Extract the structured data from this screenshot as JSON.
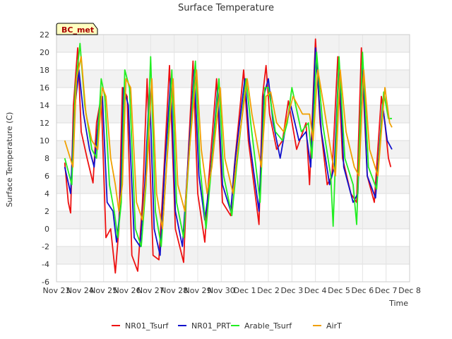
{
  "chart_data": {
    "type": "line",
    "title": "Surface Temperature",
    "xlabel": "Time",
    "ylabel": "Surface Temperature (C)",
    "badge": "BC_met",
    "xlim": [
      0,
      15
    ],
    "ylim": [
      -6,
      22
    ],
    "yticks": [
      -6,
      -4,
      -2,
      0,
      2,
      4,
      6,
      8,
      10,
      12,
      14,
      16,
      18,
      20,
      22
    ],
    "xticks": [
      {
        "v": 0,
        "label": "Nov 23"
      },
      {
        "v": 1,
        "label": "Nov 24"
      },
      {
        "v": 2,
        "label": "Nov 25"
      },
      {
        "v": 3,
        "label": "Nov 26"
      },
      {
        "v": 4,
        "label": "Nov 27"
      },
      {
        "v": 5,
        "label": "Nov 28"
      },
      {
        "v": 6,
        "label": "Nov 29"
      },
      {
        "v": 7,
        "label": "Nov 30"
      },
      {
        "v": 8,
        "label": "Dec 1"
      },
      {
        "v": 9,
        "label": "Dec 2"
      },
      {
        "v": 10,
        "label": "Dec 3"
      },
      {
        "v": 11,
        "label": "Dec 4"
      },
      {
        "v": 12,
        "label": "Dec 5"
      },
      {
        "v": 13,
        "label": "Dec 6"
      },
      {
        "v": 14,
        "label": "Dec 7"
      },
      {
        "v": 15,
        "label": "Dec 8"
      }
    ],
    "grid": true,
    "legend": "bottom",
    "series": [
      {
        "name": "NR01_Tsurf",
        "color": "#ee1111",
        "points": [
          [
            0.35,
            7.5
          ],
          [
            0.5,
            3
          ],
          [
            0.6,
            1.8
          ],
          [
            0.72,
            14
          ],
          [
            0.9,
            20.5
          ],
          [
            1.05,
            11
          ],
          [
            1.3,
            8
          ],
          [
            1.55,
            5.2
          ],
          [
            1.7,
            12
          ],
          [
            1.9,
            15
          ],
          [
            2.1,
            -1
          ],
          [
            2.3,
            0
          ],
          [
            2.5,
            -5
          ],
          [
            2.65,
            0
          ],
          [
            2.8,
            16
          ],
          [
            3.0,
            15
          ],
          [
            3.2,
            -3
          ],
          [
            3.45,
            -4.8
          ],
          [
            3.65,
            3
          ],
          [
            3.85,
            17
          ],
          [
            4.1,
            -3
          ],
          [
            4.35,
            -3.5
          ],
          [
            4.55,
            6
          ],
          [
            4.8,
            18.5
          ],
          [
            5.05,
            0
          ],
          [
            5.4,
            -3.8
          ],
          [
            5.55,
            6
          ],
          [
            5.8,
            19
          ],
          [
            6.0,
            4
          ],
          [
            6.3,
            -1.5
          ],
          [
            6.45,
            5
          ],
          [
            6.8,
            17
          ],
          [
            7.05,
            3
          ],
          [
            7.4,
            1.5
          ],
          [
            7.55,
            7
          ],
          [
            7.95,
            18
          ],
          [
            8.15,
            10
          ],
          [
            8.6,
            0.5
          ],
          [
            8.75,
            15
          ],
          [
            8.9,
            18.5
          ],
          [
            9.05,
            13
          ],
          [
            9.35,
            9
          ],
          [
            9.6,
            10
          ],
          [
            9.85,
            14.5
          ],
          [
            10.2,
            9
          ],
          [
            10.6,
            12
          ],
          [
            10.75,
            5
          ],
          [
            11.0,
            21.5
          ],
          [
            11.2,
            12
          ],
          [
            11.5,
            5
          ],
          [
            11.7,
            6
          ],
          [
            11.95,
            19.5
          ],
          [
            12.15,
            8
          ],
          [
            12.5,
            4
          ],
          [
            12.75,
            3
          ],
          [
            12.95,
            20.5
          ],
          [
            13.2,
            6
          ],
          [
            13.5,
            3
          ],
          [
            13.8,
            15
          ],
          [
            13.95,
            12
          ],
          [
            14.1,
            8
          ],
          [
            14.2,
            7
          ]
        ]
      },
      {
        "name": "NR01_PRT",
        "color": "#1111cc",
        "points": [
          [
            0.35,
            7
          ],
          [
            0.6,
            4
          ],
          [
            0.75,
            13
          ],
          [
            0.95,
            18
          ],
          [
            1.15,
            13
          ],
          [
            1.4,
            9
          ],
          [
            1.6,
            7
          ],
          [
            1.8,
            13
          ],
          [
            1.95,
            15
          ],
          [
            2.15,
            3
          ],
          [
            2.4,
            2
          ],
          [
            2.55,
            -1.5
          ],
          [
            2.7,
            2
          ],
          [
            2.85,
            16
          ],
          [
            3.05,
            14
          ],
          [
            3.3,
            -1
          ],
          [
            3.55,
            -2
          ],
          [
            3.75,
            5
          ],
          [
            3.95,
            16
          ],
          [
            4.15,
            0
          ],
          [
            4.4,
            -3
          ],
          [
            4.6,
            7
          ],
          [
            4.85,
            17
          ],
          [
            5.05,
            2
          ],
          [
            5.35,
            -2
          ],
          [
            5.55,
            6
          ],
          [
            5.85,
            18
          ],
          [
            6.05,
            6
          ],
          [
            6.3,
            1
          ],
          [
            6.5,
            5
          ],
          [
            6.85,
            16
          ],
          [
            7.05,
            5
          ],
          [
            7.4,
            2
          ],
          [
            7.6,
            8
          ],
          [
            8.0,
            17
          ],
          [
            8.2,
            10
          ],
          [
            8.6,
            2
          ],
          [
            8.8,
            15
          ],
          [
            9.0,
            17
          ],
          [
            9.2,
            12
          ],
          [
            9.5,
            8
          ],
          [
            9.7,
            11
          ],
          [
            9.95,
            14
          ],
          [
            10.3,
            10
          ],
          [
            10.6,
            11
          ],
          [
            10.8,
            7
          ],
          [
            11.0,
            20.5
          ],
          [
            11.25,
            11
          ],
          [
            11.6,
            5
          ],
          [
            11.8,
            7
          ],
          [
            12.0,
            19
          ],
          [
            12.2,
            7
          ],
          [
            12.6,
            3
          ],
          [
            12.8,
            4
          ],
          [
            13.0,
            19.5
          ],
          [
            13.2,
            6
          ],
          [
            13.55,
            3.5
          ],
          [
            13.85,
            14
          ],
          [
            14.05,
            10
          ],
          [
            14.25,
            9
          ]
        ]
      },
      {
        "name": "Arable_Tsurf",
        "color": "#22ee22",
        "points": [
          [
            0.35,
            8
          ],
          [
            0.65,
            5
          ],
          [
            0.8,
            16
          ],
          [
            1.0,
            21
          ],
          [
            1.2,
            14
          ],
          [
            1.5,
            9
          ],
          [
            1.7,
            8
          ],
          [
            1.9,
            17
          ],
          [
            2.05,
            15
          ],
          [
            2.25,
            5
          ],
          [
            2.45,
            2
          ],
          [
            2.6,
            -1
          ],
          [
            2.75,
            3
          ],
          [
            2.9,
            18
          ],
          [
            3.1,
            16
          ],
          [
            3.35,
            0
          ],
          [
            3.6,
            -2
          ],
          [
            3.8,
            5
          ],
          [
            4.0,
            19.5
          ],
          [
            4.2,
            2
          ],
          [
            4.45,
            -2
          ],
          [
            4.65,
            6
          ],
          [
            4.9,
            18
          ],
          [
            5.1,
            3
          ],
          [
            5.4,
            -1
          ],
          [
            5.6,
            7
          ],
          [
            5.9,
            19
          ],
          [
            6.1,
            7
          ],
          [
            6.35,
            0
          ],
          [
            6.55,
            6
          ],
          [
            6.9,
            17
          ],
          [
            7.1,
            6
          ],
          [
            7.45,
            1.5
          ],
          [
            7.65,
            7
          ],
          [
            8.05,
            17
          ],
          [
            8.25,
            12
          ],
          [
            8.65,
            3
          ],
          [
            8.85,
            16
          ],
          [
            9.0,
            16
          ],
          [
            9.3,
            11
          ],
          [
            9.6,
            10
          ],
          [
            9.8,
            12
          ],
          [
            10.0,
            16
          ],
          [
            10.4,
            11
          ],
          [
            10.7,
            12
          ],
          [
            10.85,
            8
          ],
          [
            11.05,
            20
          ],
          [
            11.3,
            12
          ],
          [
            11.65,
            6
          ],
          [
            11.75,
            0.3
          ],
          [
            12.0,
            19.5
          ],
          [
            12.25,
            8
          ],
          [
            12.6,
            5
          ],
          [
            12.75,
            0.5
          ],
          [
            13.0,
            20
          ],
          [
            13.25,
            7
          ],
          [
            13.6,
            4.5
          ],
          [
            13.9,
            15.5
          ],
          [
            14.1,
            12.5
          ],
          [
            14.25,
            12.5
          ]
        ]
      },
      {
        "name": "AirT",
        "color": "#f0a000",
        "points": [
          [
            0.35,
            10
          ],
          [
            0.7,
            7
          ],
          [
            0.85,
            17
          ],
          [
            1.05,
            19.5
          ],
          [
            1.25,
            13
          ],
          [
            1.5,
            10
          ],
          [
            1.75,
            9
          ],
          [
            1.95,
            16
          ],
          [
            2.1,
            15
          ],
          [
            2.3,
            8
          ],
          [
            2.5,
            5
          ],
          [
            2.65,
            2
          ],
          [
            2.8,
            5
          ],
          [
            2.95,
            17
          ],
          [
            3.15,
            16
          ],
          [
            3.4,
            3
          ],
          [
            3.65,
            1
          ],
          [
            3.85,
            7
          ],
          [
            4.05,
            17
          ],
          [
            4.25,
            4
          ],
          [
            4.5,
            0
          ],
          [
            4.7,
            8
          ],
          [
            4.95,
            17
          ],
          [
            5.15,
            5
          ],
          [
            5.45,
            2
          ],
          [
            5.65,
            9
          ],
          [
            5.95,
            18
          ],
          [
            6.15,
            9
          ],
          [
            6.4,
            4
          ],
          [
            6.6,
            7
          ],
          [
            6.95,
            16
          ],
          [
            7.15,
            8
          ],
          [
            7.5,
            4
          ],
          [
            7.7,
            9
          ],
          [
            8.1,
            17
          ],
          [
            8.3,
            13
          ],
          [
            8.7,
            7
          ],
          [
            8.9,
            15
          ],
          [
            9.1,
            15.5
          ],
          [
            9.35,
            12
          ],
          [
            9.65,
            11
          ],
          [
            9.85,
            13
          ],
          [
            10.05,
            15
          ],
          [
            10.45,
            13
          ],
          [
            10.75,
            13
          ],
          [
            10.9,
            10
          ],
          [
            11.1,
            18
          ],
          [
            11.35,
            14
          ],
          [
            11.7,
            8
          ],
          [
            11.85,
            6
          ],
          [
            12.05,
            18
          ],
          [
            12.3,
            11
          ],
          [
            12.65,
            7
          ],
          [
            12.85,
            6
          ],
          [
            13.05,
            18
          ],
          [
            13.3,
            9
          ],
          [
            13.65,
            6
          ],
          [
            13.95,
            16
          ],
          [
            14.15,
            12
          ],
          [
            14.25,
            11.5
          ]
        ]
      }
    ]
  }
}
